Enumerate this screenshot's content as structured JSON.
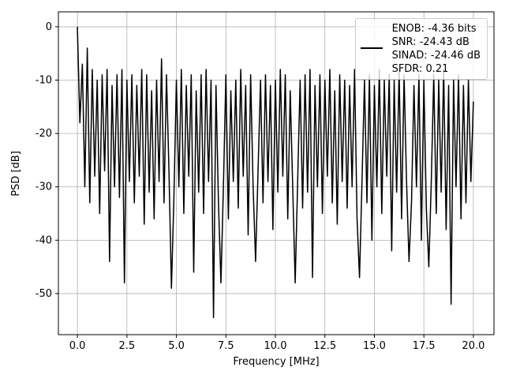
{
  "chart_data": {
    "type": "line",
    "xlabel": "Frequency [MHz]",
    "ylabel": "PSD [dB]",
    "x": [
      0,
      0.125,
      0.25,
      0.375,
      0.5,
      0.625,
      0.75,
      0.875,
      1,
      1.125,
      1.25,
      1.375,
      1.5,
      1.625,
      1.75,
      1.875,
      2,
      2.125,
      2.25,
      2.375,
      2.5,
      2.625,
      2.75,
      2.875,
      3,
      3.125,
      3.25,
      3.375,
      3.5,
      3.625,
      3.75,
      3.875,
      4,
      4.125,
      4.25,
      4.375,
      4.5,
      4.625,
      4.75,
      4.875,
      5,
      5.125,
      5.25,
      5.375,
      5.5,
      5.625,
      5.75,
      5.875,
      6,
      6.125,
      6.25,
      6.375,
      6.5,
      6.625,
      6.75,
      6.875,
      7,
      7.125,
      7.25,
      7.375,
      7.5,
      7.625,
      7.75,
      7.875,
      8,
      8.125,
      8.25,
      8.375,
      8.5,
      8.625,
      8.75,
      8.875,
      9,
      9.125,
      9.25,
      9.375,
      9.5,
      9.625,
      9.75,
      9.875,
      10,
      10.125,
      10.25,
      10.375,
      10.5,
      10.625,
      10.75,
      10.875,
      11,
      11.125,
      11.25,
      11.375,
      11.5,
      11.625,
      11.75,
      11.875,
      12,
      12.125,
      12.25,
      12.375,
      12.5,
      12.625,
      12.75,
      12.875,
      13,
      13.125,
      13.25,
      13.375,
      13.5,
      13.625,
      13.75,
      13.875,
      14,
      14.125,
      14.25,
      14.375,
      14.5,
      14.625,
      14.75,
      14.875,
      15,
      15.125,
      15.25,
      15.375,
      15.5,
      15.625,
      15.75,
      15.875,
      16,
      16.125,
      16.25,
      16.375,
      16.5,
      16.625,
      16.75,
      16.875,
      17,
      17.125,
      17.25,
      17.375,
      17.5,
      17.625,
      17.75,
      17.875,
      18,
      18.125,
      18.25,
      18.375,
      18.5,
      18.625,
      18.75,
      18.875,
      19,
      19.125,
      19.25,
      19.375,
      19.5,
      19.625,
      19.75,
      19.875,
      20
    ],
    "series": [
      {
        "name": "ENOB: -4.36 bits\nSNR: -24.43 dB\nSINAD: -24.46 dB\nSFDR: 0.21",
        "color": "#000000",
        "values": [
          0,
          -18,
          -7,
          -30,
          -4,
          -33,
          -8,
          -28,
          -10,
          -35,
          -9,
          -27,
          -8,
          -44,
          -11,
          -30,
          -9,
          -32,
          -8,
          -48,
          -10,
          -29,
          -9,
          -33,
          -11,
          -28,
          -8,
          -37,
          -9,
          -31,
          -12,
          -36,
          -10,
          -29,
          -6,
          -33,
          -9,
          -27,
          -49,
          -32,
          -10,
          -30,
          -8,
          -35,
          -11,
          -28,
          -9,
          -46,
          -12,
          -31,
          -9,
          -35,
          -8,
          -29,
          -10,
          -54.5,
          -11,
          -33,
          -48,
          -30,
          -9,
          -36,
          -12,
          -29,
          -10,
          -34,
          -8,
          -28,
          -11,
          -39,
          -9,
          -30,
          -44,
          -27,
          -10,
          -33,
          -9,
          -29,
          -11,
          -38,
          -10,
          -31,
          -8,
          -28,
          -9,
          -36,
          -12,
          -30,
          -48,
          -29,
          -10,
          -34,
          -9,
          -31,
          -8,
          -47,
          -11,
          -30,
          -9,
          -35,
          -10,
          -28,
          -8,
          -33,
          -12,
          -37,
          -9,
          -29,
          -10,
          -34,
          -11,
          -30,
          -8,
          -36,
          -47,
          -29,
          -10,
          -33,
          -9,
          -40,
          -11,
          -30,
          -8,
          -35,
          -10,
          -28,
          -9,
          -42,
          -10,
          -31,
          -8,
          -36,
          -9,
          -29,
          -44,
          -33,
          -11,
          -30,
          -9,
          -40,
          -10,
          -34,
          -45,
          -29,
          -9,
          -35,
          -10,
          -31,
          -8,
          -38,
          -11,
          -52,
          -10,
          -30,
          -9,
          -36,
          -11,
          -33,
          -10,
          -29,
          -14
        ]
      }
    ],
    "xlim": [
      -0.96,
      21.04
    ],
    "ylim": [
      -57.7,
      2.8
    ],
    "xticks": [
      {
        "value": 0,
        "label": "0.0"
      },
      2.5,
      {
        "value": 5,
        "label": "5.0"
      },
      7.5,
      {
        "value": 10,
        "label": "10.0"
      },
      12.5,
      {
        "value": 15,
        "label": "15.0"
      },
      17.5,
      {
        "value": 20,
        "label": "20.0"
      }
    ],
    "yticks": [
      0,
      -10,
      -20,
      -30,
      -40,
      -50
    ],
    "grid": true,
    "legend": "upper right"
  }
}
